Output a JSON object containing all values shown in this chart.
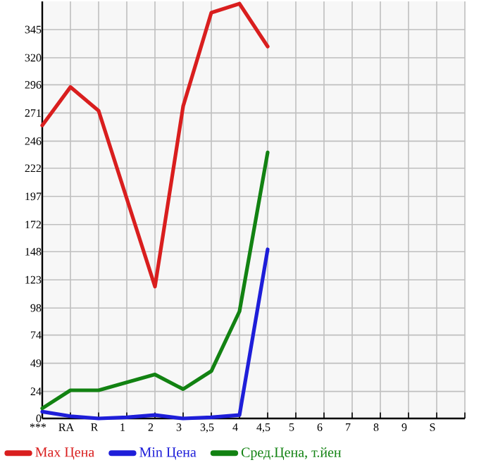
{
  "chart_data": {
    "type": "line",
    "categories": [
      "***",
      "RA",
      "R",
      "1",
      "2",
      "3",
      "3,5",
      "4",
      "4,5",
      "5",
      "6",
      "7",
      "8",
      "9",
      "S"
    ],
    "series": [
      {
        "name": "Max Цена",
        "color": "#d91e1e",
        "values": [
          260,
          294,
          273,
          195,
          117,
          277,
          360,
          368,
          330,
          null,
          null,
          null,
          null,
          null,
          null
        ]
      },
      {
        "name": "Min Цена",
        "color": "#1e1ed9",
        "values": [
          6,
          2,
          0,
          1,
          3,
          0,
          1,
          3,
          150,
          null,
          null,
          null,
          null,
          null,
          null
        ]
      },
      {
        "name": "Сред.Цена, т.йен",
        "color": "#128212",
        "values": [
          9,
          25,
          25,
          32,
          39,
          26,
          42,
          95,
          236,
          null,
          null,
          null,
          null,
          null,
          null
        ]
      }
    ],
    "ylim": [
      0,
      370
    ],
    "yticks": [
      0,
      24,
      49,
      74,
      98,
      123,
      148,
      172,
      197,
      222,
      246,
      271,
      296,
      320,
      345
    ],
    "grid": true,
    "legend": "bottom",
    "marker": "none",
    "line_style": "solid"
  }
}
